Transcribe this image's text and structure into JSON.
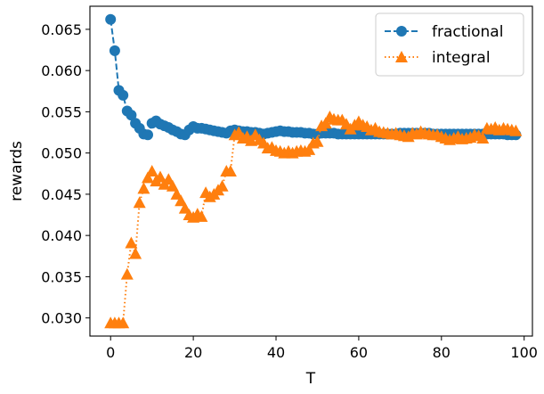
{
  "chart_data": {
    "type": "line",
    "xlabel": "T",
    "ylabel": "rewards",
    "xlim": [
      -5,
      102
    ],
    "ylim": [
      0.0278,
      0.0678
    ],
    "x_ticks": [
      0,
      20,
      40,
      60,
      80,
      100
    ],
    "y_ticks": [
      0.03,
      0.035,
      0.04,
      0.045,
      0.05,
      0.055,
      0.06,
      0.065
    ],
    "y_tick_labels": [
      "0.030",
      "0.035",
      "0.040",
      "0.045",
      "0.050",
      "0.055",
      "0.060",
      "0.065"
    ],
    "grid": false,
    "legend": "top-right",
    "series": [
      {
        "name": "fractional",
        "color": "#1f77b4",
        "marker": "circle",
        "linestyle": "dashed",
        "x": [
          0,
          1,
          2,
          3,
          4,
          5,
          6,
          7,
          8,
          9,
          10,
          11,
          12,
          13,
          14,
          15,
          16,
          17,
          18,
          19,
          20,
          21,
          22,
          23,
          24,
          25,
          26,
          27,
          28,
          29,
          30,
          31,
          32,
          33,
          34,
          35,
          36,
          37,
          38,
          39,
          40,
          41,
          42,
          43,
          44,
          45,
          46,
          47,
          48,
          49,
          50,
          51,
          52,
          53,
          54,
          55,
          56,
          57,
          58,
          59,
          60,
          61,
          62,
          63,
          64,
          65,
          66,
          67,
          68,
          69,
          70,
          71,
          72,
          73,
          74,
          75,
          76,
          77,
          78,
          79,
          80,
          81,
          82,
          83,
          84,
          85,
          86,
          87,
          88,
          89,
          90,
          91,
          92,
          93,
          94,
          95,
          96,
          97,
          98
        ],
        "y": [
          0.0662,
          0.0624,
          0.0576,
          0.057,
          0.0551,
          0.0546,
          0.0536,
          0.053,
          0.0523,
          0.0522,
          0.0536,
          0.0539,
          0.0535,
          0.0533,
          0.0531,
          0.0528,
          0.0526,
          0.0523,
          0.0522,
          0.0528,
          0.0532,
          0.053,
          0.053,
          0.0529,
          0.0528,
          0.0527,
          0.0526,
          0.0525,
          0.0524,
          0.0527,
          0.0528,
          0.0527,
          0.0526,
          0.0526,
          0.0525,
          0.0525,
          0.0524,
          0.0523,
          0.0524,
          0.0525,
          0.0526,
          0.0527,
          0.0526,
          0.0526,
          0.0525,
          0.0525,
          0.0525,
          0.0524,
          0.0524,
          0.0523,
          0.0523,
          0.0524,
          0.0524,
          0.0524,
          0.0524,
          0.0523,
          0.0523,
          0.0523,
          0.0523,
          0.0523,
          0.0523,
          0.0523,
          0.0523,
          0.0523,
          0.0523,
          0.0523,
          0.0523,
          0.0523,
          0.0523,
          0.0523,
          0.0524,
          0.0524,
          0.0524,
          0.0524,
          0.0524,
          0.0524,
          0.0524,
          0.0524,
          0.0523,
          0.0523,
          0.0523,
          0.0523,
          0.0523,
          0.0523,
          0.0523,
          0.0523,
          0.0523,
          0.0523,
          0.0523,
          0.0523,
          0.0523,
          0.0523,
          0.0523,
          0.0523,
          0.0523,
          0.0523,
          0.0522,
          0.0522,
          0.0522
        ]
      },
      {
        "name": "integral",
        "color": "#ff7f0e",
        "marker": "triangle",
        "linestyle": "dotted",
        "x": [
          0,
          1,
          2,
          3,
          4,
          5,
          6,
          7,
          8,
          9,
          10,
          11,
          12,
          13,
          14,
          15,
          16,
          17,
          18,
          19,
          20,
          21,
          22,
          23,
          24,
          25,
          26,
          27,
          28,
          29,
          30,
          31,
          32,
          33,
          34,
          35,
          36,
          37,
          38,
          39,
          40,
          41,
          42,
          43,
          44,
          45,
          46,
          47,
          48,
          49,
          50,
          51,
          52,
          53,
          54,
          55,
          56,
          57,
          58,
          59,
          60,
          61,
          62,
          63,
          64,
          65,
          66,
          67,
          68,
          69,
          70,
          71,
          72,
          73,
          74,
          75,
          76,
          77,
          78,
          79,
          80,
          81,
          82,
          83,
          84,
          85,
          86,
          87,
          88,
          89,
          90,
          91,
          92,
          93,
          94,
          95,
          96,
          97,
          98
        ],
        "y": [
          0.0294,
          0.0294,
          0.0294,
          0.0294,
          0.0353,
          0.0391,
          0.0378,
          0.044,
          0.0457,
          0.047,
          0.0478,
          0.0466,
          0.0471,
          0.0462,
          0.0468,
          0.046,
          0.045,
          0.0442,
          0.0433,
          0.0425,
          0.0422,
          0.0426,
          0.0423,
          0.0452,
          0.0447,
          0.045,
          0.0455,
          0.046,
          0.0478,
          0.0478,
          0.0522,
          0.0525,
          0.0518,
          0.052,
          0.0515,
          0.0522,
          0.0516,
          0.0512,
          0.0506,
          0.0507,
          0.0503,
          0.0502,
          0.05,
          0.0502,
          0.05,
          0.0502,
          0.0503,
          0.0502,
          0.0504,
          0.0512,
          0.0514,
          0.0533,
          0.0536,
          0.0544,
          0.0541,
          0.054,
          0.054,
          0.0535,
          0.0529,
          0.0534,
          0.0538,
          0.0534,
          0.0532,
          0.0528,
          0.053,
          0.0526,
          0.0525,
          0.0524,
          0.0523,
          0.0524,
          0.0522,
          0.0521,
          0.052,
          0.0524,
          0.0523,
          0.0526,
          0.0524,
          0.0523,
          0.0522,
          0.0522,
          0.052,
          0.0518,
          0.0516,
          0.0518,
          0.052,
          0.0517,
          0.0518,
          0.0519,
          0.0522,
          0.0521,
          0.0518,
          0.053,
          0.0529,
          0.0531,
          0.0528,
          0.053,
          0.0529,
          0.0528,
          0.0527
        ]
      }
    ]
  }
}
